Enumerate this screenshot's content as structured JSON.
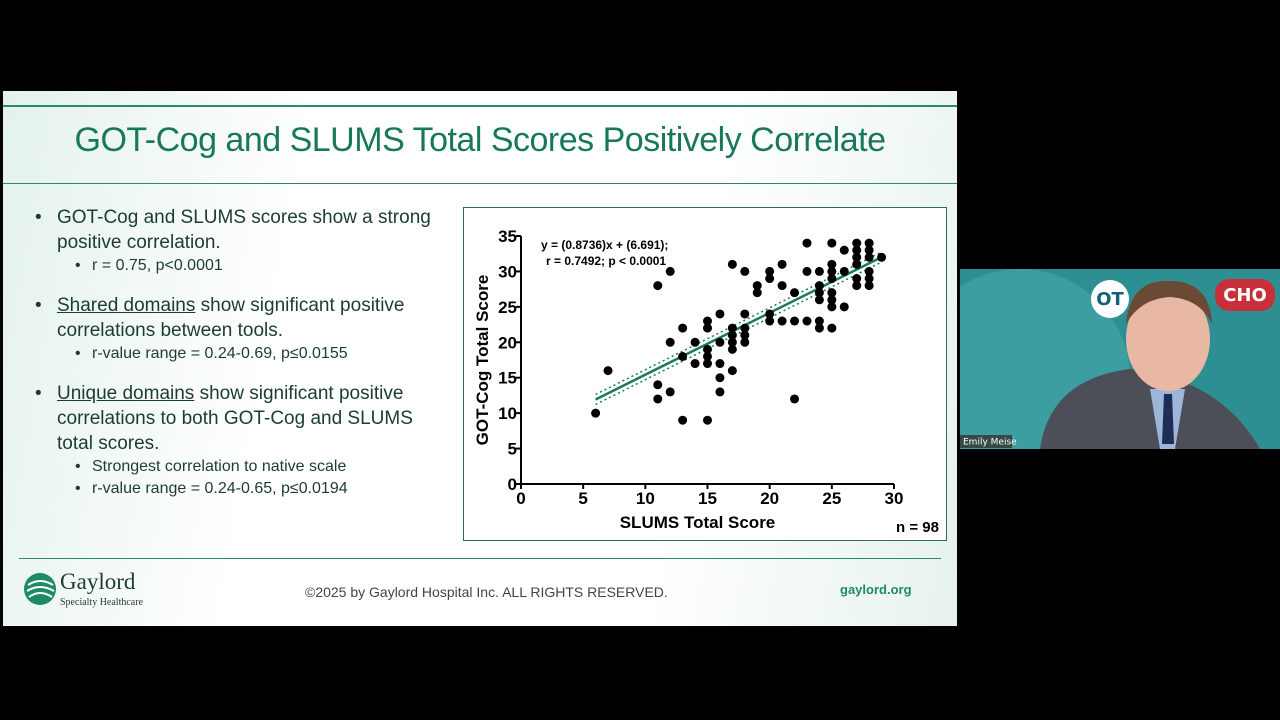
{
  "slide": {
    "title": "GOT-Cog and SLUMS Total Scores Positively Correlate",
    "bullets": [
      {
        "text": "GOT-Cog and SLUMS scores show a strong positive correlation.",
        "sub": [
          "r = 0.75, p<0.0001"
        ]
      },
      {
        "underlined": "Shared domains",
        "text": " show significant positive correlations between tools.",
        "sub": [
          "r-value range = 0.24-0.69, p≤0.0155"
        ]
      },
      {
        "underlined": "Unique domains",
        "text": " show significant positive correlations to both GOT-Cog and SLUMS total scores.",
        "sub": [
          "Strongest correlation to native scale",
          "r-value range = 0.24-0.65, p≤0.0194"
        ]
      }
    ]
  },
  "chart_data": {
    "type": "scatter",
    "x_label": "SLUMS Total Score",
    "y_label": "GOT-Cog Total Score",
    "annotations": [
      "y = (0.8736)x + (6.691);",
      "r = 0.7492; p < 0.0001"
    ],
    "n_label": "n = 98",
    "fit": {
      "slope": 0.8736,
      "intercept": 6.691,
      "color": "#1a7a5e"
    },
    "color": "#000000",
    "x": [
      6,
      7,
      11,
      12,
      11,
      11,
      12,
      12,
      13,
      13,
      13,
      14,
      14,
      15,
      15,
      15,
      15,
      15,
      15,
      16,
      16,
      16,
      16,
      16,
      17,
      17,
      17,
      17,
      17,
      17,
      18,
      18,
      18,
      18,
      18,
      19,
      19,
      20,
      20,
      20,
      20,
      21,
      21,
      21,
      22,
      22,
      22,
      23,
      23,
      23,
      24,
      24,
      24,
      24,
      24,
      24,
      25,
      25,
      25,
      25,
      25,
      25,
      25,
      25,
      26,
      26,
      26,
      27,
      27,
      27,
      27,
      27,
      27,
      28,
      28,
      28,
      28,
      28,
      28,
      29
    ],
    "y": [
      10,
      16,
      28,
      30,
      14,
      12,
      13,
      20,
      22,
      18,
      9,
      17,
      20,
      23,
      22,
      19,
      18,
      17,
      9,
      24,
      20,
      17,
      15,
      13,
      31,
      22,
      21,
      20,
      19,
      16,
      30,
      24,
      22,
      21,
      20,
      28,
      27,
      30,
      29,
      24,
      23,
      31,
      28,
      23,
      27,
      23,
      12,
      34,
      30,
      23,
      30,
      28,
      27,
      26,
      23,
      22,
      34,
      31,
      30,
      29,
      27,
      26,
      25,
      22,
      33,
      30,
      25,
      34,
      33,
      32,
      31,
      29,
      28,
      34,
      33,
      32,
      30,
      29,
      28,
      32
    ],
    "xlim": [
      0,
      30
    ],
    "xticks": [
      0,
      5,
      10,
      15,
      20,
      25,
      30
    ],
    "ylim": [
      0,
      35
    ],
    "yticks": [
      0,
      5,
      10,
      15,
      20,
      25,
      30,
      35
    ]
  },
  "footer": {
    "logo_name": "Gaylord",
    "logo_sub": "Specialty Healthcare",
    "copyright": "©2025 by Gaylord Hospital Inc. ALL RIGHTS RESERVED.",
    "url": "gaylord.org"
  },
  "video": {
    "name": "Emily Meise",
    "badge_left": "OT",
    "badge_right": "CHO"
  }
}
